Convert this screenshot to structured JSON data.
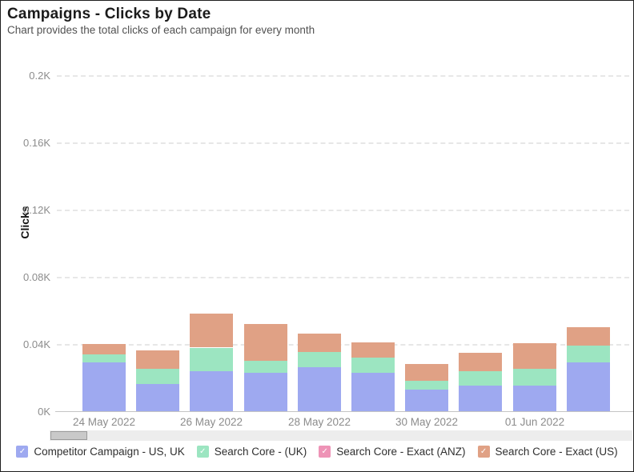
{
  "header": {
    "title": "Campaigns - Clicks by Date",
    "subtitle": "Chart provides the total clicks of each campaign for every month"
  },
  "chart_data": {
    "type": "bar",
    "stacked": true,
    "title": "Campaigns - Clicks by Date",
    "xlabel": "",
    "ylabel": "Clicks",
    "unit": "clicks",
    "ylim": [
      0,
      200
    ],
    "grid": "horizontal-dashed",
    "legend_position": "bottom",
    "y_ticks": [
      {
        "value": 0,
        "label": "0K"
      },
      {
        "value": 40,
        "label": "0.04K"
      },
      {
        "value": 80,
        "label": "0.08K"
      },
      {
        "value": 120,
        "label": "0.12K"
      },
      {
        "value": 160,
        "label": "0.16K"
      },
      {
        "value": 200,
        "label": "0.2K"
      }
    ],
    "x_ticks": [
      {
        "bar_index": 0,
        "label": "24 May 2022"
      },
      {
        "bar_index": 2,
        "label": "26 May 2022"
      },
      {
        "bar_index": 4,
        "label": "28 May 2022"
      },
      {
        "bar_index": 6,
        "label": "30 May 2022"
      },
      {
        "bar_index": 8,
        "label": "01 Jun 2022"
      }
    ],
    "bar_count": 10,
    "series": [
      {
        "name": "Competitor Campaign - US, UK",
        "color": "#9ea9f0",
        "values": [
          29,
          16,
          24,
          23,
          26,
          23,
          13,
          15,
          15,
          29
        ]
      },
      {
        "name": "Search Core - (UK)",
        "color": "#9ce5c1",
        "values": [
          5,
          9,
          14,
          7,
          9,
          9,
          5,
          9,
          10,
          10
        ]
      },
      {
        "name": "Search Core - Exact (ANZ)",
        "color": "#ee93b6",
        "values": [
          0,
          0,
          0,
          0,
          0,
          0,
          0,
          0,
          0,
          0
        ]
      },
      {
        "name": "Search Core - Exact (US)",
        "color": "#e0a185",
        "values": [
          6,
          11,
          20,
          22,
          11,
          9,
          10,
          11,
          15,
          11
        ]
      }
    ],
    "legend_check_glyph": "✓"
  }
}
